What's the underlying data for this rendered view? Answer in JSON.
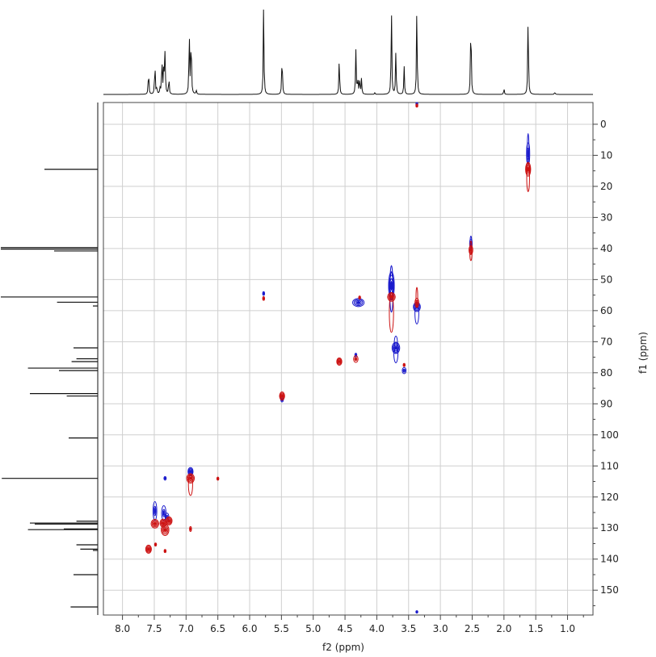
{
  "chart_data": {
    "type": "2d-nmr-contour",
    "title": "",
    "xlabel": "f2 (ppm)",
    "ylabel": "f1 (ppm)",
    "x_axis": {
      "range": [
        8.3,
        0.6
      ],
      "reversed": true,
      "ticks": [
        8.0,
        7.5,
        7.0,
        6.5,
        6.0,
        5.5,
        5.0,
        4.5,
        4.0,
        3.5,
        3.0,
        2.5,
        2.0,
        1.5,
        1.0
      ],
      "tick_labels": [
        "8.0",
        "7.5",
        "7.0",
        "6.5",
        "6.0",
        "5.5",
        "5.0",
        "4.5",
        "4.0",
        "3.5",
        "3.0",
        "2.5",
        "2.0",
        "1.5",
        "1.0"
      ]
    },
    "y_axis": {
      "range": [
        -7,
        158
      ],
      "ticks": [
        0,
        10,
        20,
        30,
        40,
        50,
        60,
        70,
        80,
        90,
        100,
        110,
        120,
        130,
        140,
        150
      ],
      "tick_labels": [
        "0",
        "10",
        "20",
        "30",
        "40",
        "50",
        "60",
        "70",
        "80",
        "90",
        "100",
        "110",
        "120",
        "130",
        "140",
        "150"
      ],
      "position": "right"
    },
    "grid": true,
    "series": [
      {
        "color": "#cc1111"
      },
      {
        "color": "#1a1acc"
      }
    ],
    "peaks_red": [
      {
        "x": 1.62,
        "y": 14.5,
        "rx": 0.04,
        "ry": 2.2,
        "tail_up": 0,
        "tail_down": 5
      },
      {
        "x": 2.52,
        "y": 40.5,
        "rx": 0.03,
        "ry": 1.4,
        "tail_up": 1.5,
        "tail_down": 2
      },
      {
        "x": 3.37,
        "y": 57.5,
        "rx": 0.03,
        "ry": 1.5,
        "tail_up": 3.5,
        "tail_down": 0
      },
      {
        "x": 3.77,
        "y": 55.6,
        "rx": 0.06,
        "ry": 1.4,
        "tail_up": 0,
        "tail_down": 10
      },
      {
        "x": 4.33,
        "y": 75.6,
        "rx": 0.035,
        "ry": 1.1,
        "tail_up": 0,
        "tail_down": 0
      },
      {
        "x": 4.59,
        "y": 76.4,
        "rx": 0.04,
        "ry": 1.2,
        "tail_up": 0,
        "tail_down": 0
      },
      {
        "x": 5.49,
        "y": 87.5,
        "rx": 0.04,
        "ry": 1.3,
        "tail_up": 0,
        "tail_down": 0
      },
      {
        "x": 5.78,
        "y": 56.1,
        "rx": 0.015,
        "ry": 0.6,
        "tail_up": 0,
        "tail_down": 0
      },
      {
        "x": 6.93,
        "y": 114.0,
        "rx": 0.06,
        "ry": 1.5,
        "tail_up": 0,
        "tail_down": 4
      },
      {
        "x": 6.93,
        "y": 130.3,
        "rx": 0.015,
        "ry": 0.8,
        "tail_up": 0,
        "tail_down": 0
      },
      {
        "x": 6.5,
        "y": 114.1,
        "rx": 0.015,
        "ry": 0.5,
        "tail_up": 0,
        "tail_down": 0
      },
      {
        "x": 7.49,
        "y": 128.6,
        "rx": 0.06,
        "ry": 1.4,
        "tail_up": 0,
        "tail_down": 0
      },
      {
        "x": 7.36,
        "y": 128.4,
        "rx": 0.05,
        "ry": 1.3,
        "tail_up": 0,
        "tail_down": 0
      },
      {
        "x": 7.33,
        "y": 130.6,
        "rx": 0.06,
        "ry": 1.8,
        "tail_up": 0,
        "tail_down": 0
      },
      {
        "x": 7.27,
        "y": 127.7,
        "rx": 0.05,
        "ry": 1.3,
        "tail_up": 0,
        "tail_down": 0
      },
      {
        "x": 7.59,
        "y": 136.8,
        "rx": 0.045,
        "ry": 1.3,
        "tail_up": 0,
        "tail_down": 0
      },
      {
        "x": 7.33,
        "y": 137.4,
        "rx": 0.012,
        "ry": 0.5,
        "tail_up": 0,
        "tail_down": 0
      },
      {
        "x": 7.48,
        "y": 135.3,
        "rx": 0.012,
        "ry": 0.5,
        "tail_up": 0,
        "tail_down": 0
      },
      {
        "x": 3.57,
        "y": 77.5,
        "rx": 0.012,
        "ry": 0.5,
        "tail_up": 0,
        "tail_down": 0
      },
      {
        "x": 4.27,
        "y": 55.8,
        "rx": 0.012,
        "ry": 0.5,
        "tail_up": 0,
        "tail_down": 0
      },
      {
        "x": 3.37,
        "y": -6.0,
        "rx": 0.012,
        "ry": 0.5,
        "tail_up": 0,
        "tail_down": 0
      }
    ],
    "peaks_blue": [
      {
        "x": 1.62,
        "y": 9.5,
        "rx": 0.025,
        "ry": 3.5,
        "tail_up": 3,
        "tail_down": 0
      },
      {
        "x": 2.52,
        "y": 38.5,
        "rx": 0.02,
        "ry": 1.5,
        "tail_up": 1,
        "tail_down": 0
      },
      {
        "x": 3.37,
        "y": 58.8,
        "rx": 0.055,
        "ry": 1.5,
        "tail_up": 0,
        "tail_down": 4
      },
      {
        "x": 3.77,
        "y": 52.0,
        "rx": 0.045,
        "ry": 4.5,
        "tail_up": 2,
        "tail_down": 4
      },
      {
        "x": 3.7,
        "y": 72.0,
        "rx": 0.06,
        "ry": 1.8,
        "tail_up": 2,
        "tail_down": 3
      },
      {
        "x": 3.57,
        "y": 79.3,
        "rx": 0.03,
        "ry": 1.0,
        "tail_up": 0,
        "tail_down": 0
      },
      {
        "x": 4.29,
        "y": 57.4,
        "rx": 0.09,
        "ry": 1.3,
        "tail_up": 0,
        "tail_down": 0
      },
      {
        "x": 4.33,
        "y": 74.3,
        "rx": 0.015,
        "ry": 0.6,
        "tail_up": 0,
        "tail_down": 0
      },
      {
        "x": 5.49,
        "y": 88.7,
        "rx": 0.02,
        "ry": 0.7,
        "tail_up": 0,
        "tail_down": 0
      },
      {
        "x": 5.78,
        "y": 54.5,
        "rx": 0.015,
        "ry": 0.6,
        "tail_up": 0,
        "tail_down": 0
      },
      {
        "x": 6.93,
        "y": 111.8,
        "rx": 0.04,
        "ry": 1.3,
        "tail_up": 0,
        "tail_down": 0
      },
      {
        "x": 7.33,
        "y": 114.0,
        "rx": 0.018,
        "ry": 0.6,
        "tail_up": 0,
        "tail_down": 0
      },
      {
        "x": 7.49,
        "y": 124.5,
        "rx": 0.03,
        "ry": 3.0,
        "tail_up": 0,
        "tail_down": 0
      },
      {
        "x": 7.35,
        "y": 125.2,
        "rx": 0.035,
        "ry": 2.4,
        "tail_up": 0,
        "tail_down": 0
      },
      {
        "x": 7.3,
        "y": 126.5,
        "rx": 0.03,
        "ry": 1.3,
        "tail_up": 0,
        "tail_down": 0
      },
      {
        "x": 3.37,
        "y": -6.5,
        "rx": 0.012,
        "ry": 0.5,
        "tail_up": 0,
        "tail_down": 0
      },
      {
        "x": 3.37,
        "y": 157.0,
        "rx": 0.01,
        "ry": 0.4,
        "tail_up": 0,
        "tail_down": 0
      }
    ],
    "projection_f2": {
      "peaks": [
        {
          "x": 7.59,
          "h": 0.3
        },
        {
          "x": 7.49,
          "h": 0.38
        },
        {
          "x": 7.46,
          "h": 0.08
        },
        {
          "x": 7.41,
          "h": 0.06
        },
        {
          "x": 7.38,
          "h": 0.45
        },
        {
          "x": 7.35,
          "h": 0.38
        },
        {
          "x": 7.33,
          "h": 0.5
        },
        {
          "x": 7.27,
          "h": 0.2
        },
        {
          "x": 6.95,
          "h": 0.75
        },
        {
          "x": 6.92,
          "h": 0.75
        },
        {
          "x": 6.84,
          "h": 0.05
        },
        {
          "x": 5.78,
          "h": 1.0
        },
        {
          "x": 5.49,
          "h": 0.51
        },
        {
          "x": 4.59,
          "h": 0.44
        },
        {
          "x": 4.33,
          "h": 0.52
        },
        {
          "x": 4.3,
          "h": 0.2
        },
        {
          "x": 4.27,
          "h": 0.2
        },
        {
          "x": 4.24,
          "h": 0.18
        },
        {
          "x": 4.03,
          "h": 0.02
        },
        {
          "x": 3.77,
          "h": 1.0
        },
        {
          "x": 3.7,
          "h": 0.52
        },
        {
          "x": 3.57,
          "h": 0.32
        },
        {
          "x": 3.37,
          "h": 1.0
        },
        {
          "x": 2.52,
          "h": 1.0
        },
        {
          "x": 2.0,
          "h": 0.07
        },
        {
          "x": 1.62,
          "h": 0.97
        },
        {
          "x": 1.2,
          "h": 0.03
        }
      ]
    },
    "projection_f1": {
      "peaks": [
        {
          "y": 14.5,
          "h": 0.55
        },
        {
          "y": 39.7,
          "h": 1.0
        },
        {
          "y": 40.2,
          "h": 1.0
        },
        {
          "y": 40.8,
          "h": 0.45
        },
        {
          "y": 55.6,
          "h": 1.0
        },
        {
          "y": 57.3,
          "h": 0.42
        },
        {
          "y": 58.5,
          "h": 0.05
        },
        {
          "y": 72.0,
          "h": 0.25
        },
        {
          "y": 75.5,
          "h": 0.22
        },
        {
          "y": 76.4,
          "h": 0.27
        },
        {
          "y": 78.5,
          "h": 0.72
        },
        {
          "y": 79.3,
          "h": 0.4
        },
        {
          "y": 86.7,
          "h": 0.7
        },
        {
          "y": 87.5,
          "h": 0.32
        },
        {
          "y": 101.0,
          "h": 0.3
        },
        {
          "y": 114.0,
          "h": 0.99
        },
        {
          "y": 127.8,
          "h": 0.22
        },
        {
          "y": 128.4,
          "h": 0.7
        },
        {
          "y": 128.7,
          "h": 0.65
        },
        {
          "y": 130.5,
          "h": 0.72
        },
        {
          "y": 130.3,
          "h": 0.35
        },
        {
          "y": 135.4,
          "h": 0.22
        },
        {
          "y": 136.8,
          "h": 0.18
        },
        {
          "y": 137.2,
          "h": 0.05
        },
        {
          "y": 145.0,
          "h": 0.25
        },
        {
          "y": 155.4,
          "h": 0.28
        }
      ]
    }
  }
}
